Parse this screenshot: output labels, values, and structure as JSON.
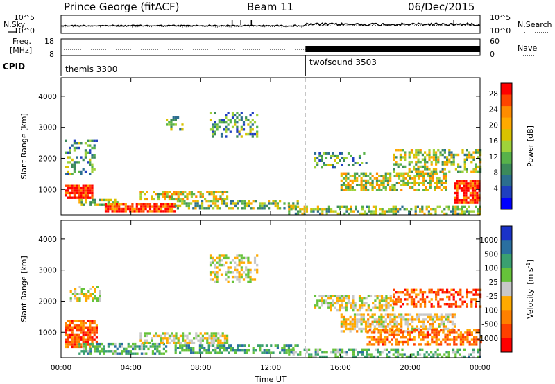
{
  "header": {
    "radar": "Prince George (fitACF)",
    "beam": "Beam 11",
    "date": "06/Dec/2015"
  },
  "noise_panel": {
    "left_label": "N.Sky",
    "right_label": "N.Search",
    "left_ticks": [
      "10^5",
      "10^0"
    ],
    "right_ticks": [
      "10^5",
      "10^0"
    ]
  },
  "freq_panel": {
    "left_label_line1": "Freq.",
    "left_label_line2": "[MHz]",
    "right_label": "Nave",
    "left_ticks": [
      "18",
      "8"
    ],
    "right_ticks": [
      "60",
      "0"
    ]
  },
  "cpid_panel": {
    "label": "CPID",
    "modes": [
      {
        "name": "themis 3300",
        "start_hour": 0
      },
      {
        "name": "twofsound 3503",
        "start_hour": 14
      }
    ]
  },
  "chart_data": [
    {
      "type": "heatmap",
      "name": "power",
      "ylabel": "Slant Range [km]",
      "yticks": [
        "4000",
        "3000",
        "2000",
        "1000"
      ],
      "ytick_values": [
        4000,
        3000,
        2000,
        1000
      ],
      "ylim": [
        180,
        4600
      ],
      "xlim_hours": [
        0,
        24
      ],
      "colorbar_label": "Power [dB]",
      "colorbar_ticks": [
        "28",
        "24",
        "20",
        "16",
        "12",
        "8",
        "4"
      ],
      "colorbar_colors": [
        "#ff0000",
        "#ff4400",
        "#ff8c00",
        "#ffaa00",
        "#d9c200",
        "#9fd23a",
        "#58b24a",
        "#3c8a5a",
        "#2c6e8f",
        "#1f3fbf",
        "#0000ff"
      ],
      "regions": [
        {
          "t0": 0.2,
          "t1": 1.8,
          "r0": 700,
          "r1": 1150,
          "level": 0.95,
          "density": 0.9
        },
        {
          "t0": 1.0,
          "t1": 3.2,
          "r0": 500,
          "r1": 700,
          "level": 0.55,
          "density": 0.6
        },
        {
          "t0": 2.5,
          "t1": 6.5,
          "r0": 330,
          "r1": 560,
          "level": 0.9,
          "density": 0.85
        },
        {
          "t0": 6.5,
          "t1": 13.5,
          "r0": 380,
          "r1": 650,
          "level": 0.45,
          "density": 0.55
        },
        {
          "t0": 4.5,
          "t1": 9.5,
          "r0": 650,
          "r1": 950,
          "level": 0.6,
          "density": 0.5
        },
        {
          "t0": 0.2,
          "t1": 2.0,
          "r0": 1500,
          "r1": 2600,
          "level": 0.35,
          "density": 0.35
        },
        {
          "t0": 6.0,
          "t1": 7.0,
          "r0": 2900,
          "r1": 3350,
          "level": 0.4,
          "density": 0.35
        },
        {
          "t0": 8.5,
          "t1": 11.2,
          "r0": 2700,
          "r1": 3500,
          "level": 0.35,
          "density": 0.4
        },
        {
          "t0": 13.0,
          "t1": 24.0,
          "r0": 250,
          "r1": 480,
          "level": 0.45,
          "density": 0.55
        },
        {
          "t0": 16.0,
          "t1": 22.0,
          "r0": 950,
          "r1": 1550,
          "level": 0.55,
          "density": 0.6
        },
        {
          "t0": 19.0,
          "t1": 24.0,
          "r0": 1600,
          "r1": 2300,
          "level": 0.5,
          "density": 0.45
        },
        {
          "t0": 22.5,
          "t1": 24.0,
          "r0": 600,
          "r1": 1300,
          "level": 0.95,
          "density": 0.8
        },
        {
          "t0": 14.5,
          "t1": 17.5,
          "r0": 1700,
          "r1": 2200,
          "level": 0.35,
          "density": 0.35
        }
      ]
    },
    {
      "type": "heatmap",
      "name": "velocity",
      "ylabel": "Slant Range [km]",
      "yticks": [
        "4000",
        "3000",
        "2000",
        "1000"
      ],
      "ytick_values": [
        4000,
        3000,
        2000,
        1000
      ],
      "ylim": [
        180,
        4600
      ],
      "xlim_hours": [
        0,
        24
      ],
      "xticks": [
        "00:00",
        "04:00",
        "08:00",
        "12:00",
        "16:00",
        "20:00",
        "00:00"
      ],
      "xtick_hours": [
        0,
        4,
        8,
        12,
        16,
        20,
        24
      ],
      "xlabel": "Time UT",
      "colorbar_label_main": "Velocity",
      "colorbar_label_unit": "[m s",
      "colorbar_label_exp": "-1",
      "colorbar_label_close": "]",
      "colorbar_ticks": [
        "1000",
        "500",
        "100",
        "25",
        "-25",
        "-100",
        "-500",
        "-1000"
      ],
      "colorbar_colors": [
        "#1a32c8",
        "#2a6fa0",
        "#3aa070",
        "#66c23a",
        "#c8c8c8",
        "#ffaa00",
        "#ff8000",
        "#ff4000",
        "#ff0000"
      ],
      "regions": [
        {
          "t0": 0.2,
          "t1": 2.0,
          "r0": 550,
          "r1": 1400,
          "vel": -0.55,
          "density": 0.85
        },
        {
          "t0": 1.0,
          "t1": 6.0,
          "r0": 330,
          "r1": 650,
          "vel": 0.35,
          "density": 0.6
        },
        {
          "t0": 4.5,
          "t1": 9.5,
          "r0": 650,
          "r1": 1000,
          "vel": 0.0,
          "density": 0.6
        },
        {
          "t0": 6.5,
          "t1": 13.5,
          "r0": 300,
          "r1": 600,
          "vel": 0.4,
          "density": 0.6
        },
        {
          "t0": 0.5,
          "t1": 2.2,
          "r0": 2000,
          "r1": 2500,
          "vel": 0.0,
          "density": 0.4
        },
        {
          "t0": 8.5,
          "t1": 11.2,
          "r0": 2600,
          "r1": 3500,
          "vel": 0.0,
          "density": 0.45
        },
        {
          "t0": 14.5,
          "t1": 19.0,
          "r0": 1700,
          "r1": 2200,
          "vel": 0.0,
          "density": 0.55
        },
        {
          "t0": 16.0,
          "t1": 22.5,
          "r0": 1000,
          "r1": 1600,
          "vel": -0.1,
          "density": 0.65
        },
        {
          "t0": 19.0,
          "t1": 24.0,
          "r0": 1800,
          "r1": 2400,
          "vel": -0.6,
          "density": 0.5
        },
        {
          "t0": 17.5,
          "t1": 24.0,
          "r0": 600,
          "r1": 1100,
          "vel": -0.5,
          "density": 0.55
        },
        {
          "t0": 13.0,
          "t1": 24.0,
          "r0": 250,
          "r1": 480,
          "vel": 0.3,
          "density": 0.5
        }
      ]
    }
  ]
}
